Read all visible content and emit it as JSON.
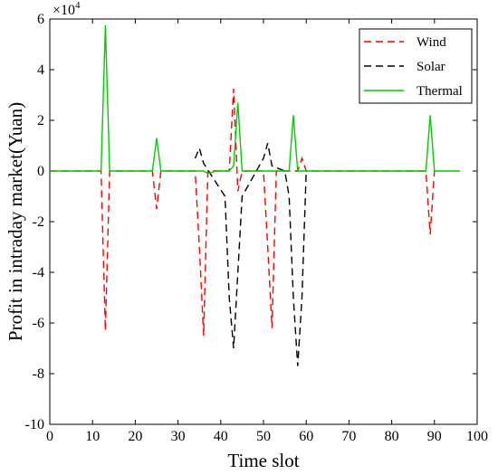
{
  "chart_data": {
    "type": "line",
    "title": "",
    "xlabel": "Time slot",
    "ylabel": "Profit in intraday market(Yuan)",
    "y_multiplier_label": "×10",
    "y_multiplier_exp": "4",
    "xlim": [
      0,
      100
    ],
    "ylim": [
      -10,
      6
    ],
    "xticks": [
      0,
      10,
      20,
      30,
      40,
      50,
      60,
      70,
      80,
      90,
      100
    ],
    "yticks": [
      6,
      4,
      2,
      0,
      -2,
      -4,
      -6,
      -8,
      -10
    ],
    "grid": false,
    "legend_position": "top-right",
    "series": [
      {
        "name": "Wind",
        "color": "#ff0000",
        "dash": "dashed",
        "points": [
          [
            0,
            0
          ],
          [
            11,
            0
          ],
          [
            12,
            0
          ],
          [
            13,
            -6.3
          ],
          [
            14,
            0
          ],
          [
            24,
            0
          ],
          [
            25,
            -1.5
          ],
          [
            26,
            0
          ],
          [
            34,
            0
          ],
          [
            35,
            -3
          ],
          [
            36,
            -6.5
          ],
          [
            37,
            0
          ],
          [
            42,
            0
          ],
          [
            43,
            3.25
          ],
          [
            44,
            -0.8
          ],
          [
            45,
            0
          ],
          [
            50,
            0
          ],
          [
            51,
            -3
          ],
          [
            52,
            -6.2
          ],
          [
            53,
            0
          ],
          [
            58,
            0
          ],
          [
            59,
            0.5
          ],
          [
            60,
            0
          ],
          [
            88,
            0
          ],
          [
            89,
            -2.5
          ],
          [
            90,
            0
          ]
        ]
      },
      {
        "name": "Solar",
        "color": "#000000",
        "dash": "dashed",
        "points": [
          [
            34,
            0.5
          ],
          [
            35,
            0.9
          ],
          [
            36,
            0.3
          ],
          [
            41,
            -1
          ],
          [
            42,
            -5
          ],
          [
            43,
            -7
          ],
          [
            44,
            -4
          ],
          [
            45,
            -1
          ],
          [
            50,
            0.5
          ],
          [
            51,
            1.1
          ],
          [
            52,
            0.2
          ],
          [
            55,
            0
          ],
          [
            56,
            -1
          ],
          [
            57,
            -5
          ],
          [
            58,
            -7.7
          ],
          [
            59,
            -5
          ],
          [
            60,
            0
          ]
        ]
      },
      {
        "name": "Thermal",
        "color": "#00cc00",
        "dash": "solid",
        "points": [
          [
            0,
            0
          ],
          [
            12,
            0
          ],
          [
            13,
            5.75
          ],
          [
            14,
            0
          ],
          [
            24,
            0
          ],
          [
            25,
            1.3
          ],
          [
            26,
            0
          ],
          [
            36,
            0
          ],
          [
            37,
            -0.1
          ],
          [
            39,
            0
          ],
          [
            42,
            0
          ],
          [
            43,
            0.2
          ],
          [
            44,
            2.7
          ],
          [
            45,
            0
          ],
          [
            56,
            0
          ],
          [
            57,
            2.2
          ],
          [
            58,
            0
          ],
          [
            88,
            0
          ],
          [
            89,
            2.2
          ],
          [
            90,
            0
          ],
          [
            96,
            0
          ]
        ]
      }
    ]
  }
}
